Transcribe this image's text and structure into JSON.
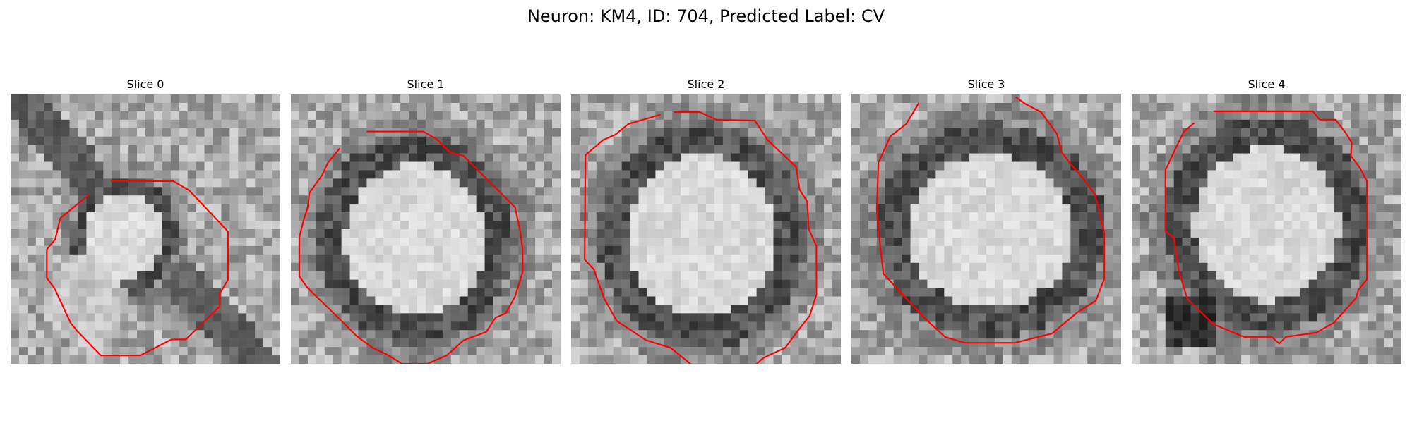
{
  "figure": {
    "title": "Neuron: KM4, ID: 704, Predicted Label: CV"
  },
  "panels": [
    {
      "title": "Slice 0"
    },
    {
      "title": "Slice 1"
    },
    {
      "title": "Slice 2"
    },
    {
      "title": "Slice 3"
    },
    {
      "title": "Slice 4"
    }
  ],
  "colors": {
    "contour": "#ff0000",
    "background": "#ffffff"
  }
}
